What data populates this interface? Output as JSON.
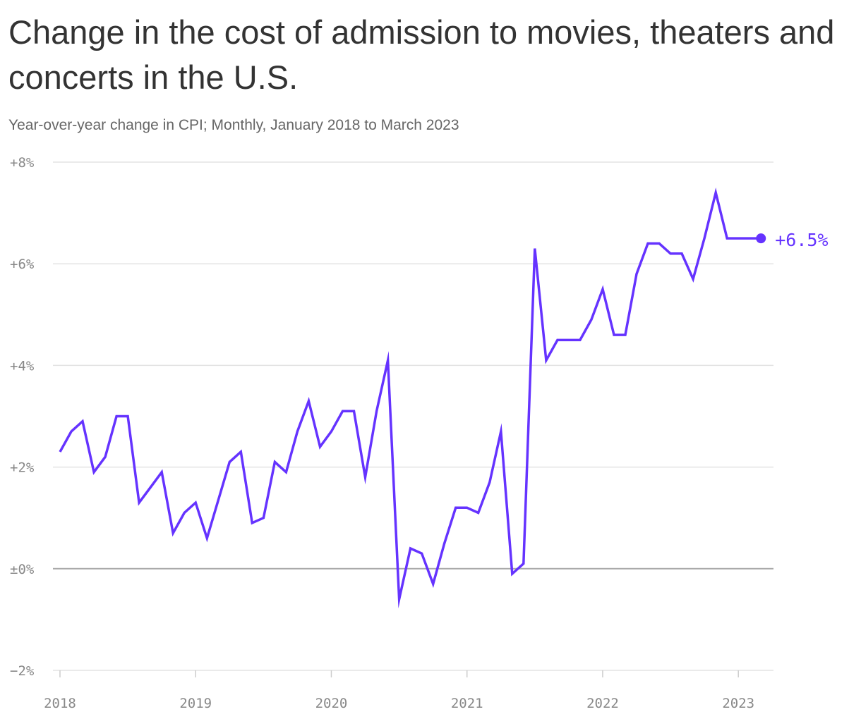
{
  "title": "Change in the cost of admission to movies, theaters and concerts in the U.S.",
  "subtitle": "Year-over-year change in CPI; Monthly, January 2018 to March 2023",
  "colors": {
    "line": "#6533ff",
    "grid": "#e3e3e3",
    "zero": "#aaaaaa",
    "tick": "#888888"
  },
  "chart_data": {
    "type": "line",
    "x_start": "2018-01",
    "x_end": "2023-03",
    "ylim": [
      -2,
      8
    ],
    "yticks": [
      {
        "value": 8,
        "label": "+8%"
      },
      {
        "value": 6,
        "label": "+6%"
      },
      {
        "value": 4,
        "label": "+4%"
      },
      {
        "value": 2,
        "label": "+2%"
      },
      {
        "value": 0,
        "label": "±0%"
      },
      {
        "value": -2,
        "label": "−2%"
      }
    ],
    "xticks": [
      {
        "month_index": 0,
        "label": "2018"
      },
      {
        "month_index": 12,
        "label": "2019"
      },
      {
        "month_index": 24,
        "label": "2020"
      },
      {
        "month_index": 36,
        "label": "2021"
      },
      {
        "month_index": 48,
        "label": "2022"
      },
      {
        "month_index": 60,
        "label": "2023"
      }
    ],
    "values": [
      2.3,
      2.7,
      2.9,
      1.9,
      2.2,
      3.0,
      3.0,
      1.3,
      1.6,
      1.9,
      0.7,
      1.1,
      1.3,
      0.6,
      1.35,
      2.1,
      2.3,
      0.9,
      1.0,
      2.1,
      1.9,
      2.7,
      3.3,
      2.4,
      2.7,
      3.1,
      3.1,
      1.8,
      3.1,
      4.1,
      -0.6,
      0.4,
      0.3,
      -0.3,
      0.5,
      1.2,
      1.2,
      1.1,
      1.7,
      2.7,
      -0.1,
      0.1,
      6.3,
      4.1,
      4.5,
      4.5,
      4.5,
      4.9,
      5.5,
      4.6,
      4.6,
      5.8,
      6.4,
      6.4,
      6.2,
      6.2,
      5.7,
      6.5,
      7.4,
      6.5,
      6.5,
      6.5,
      6.5
    ],
    "end_label": "+6.5%"
  }
}
